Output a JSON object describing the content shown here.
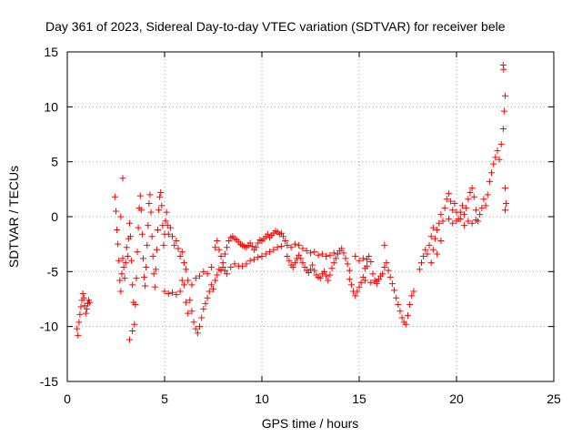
{
  "chart_data": {
    "type": "scatter",
    "title": "Day 361 of 2023, Sidereal Day-to-day VTEC variation (SDTVAR) for receiver bele",
    "xlabel": "GPS time / hours",
    "ylabel": "SDTVAR / TECUs",
    "xlim": [
      0,
      25
    ],
    "ylim": [
      -15,
      15
    ],
    "xticks": [
      0,
      5,
      10,
      15,
      20,
      25
    ],
    "yticks": [
      -15,
      -10,
      -5,
      0,
      5,
      10,
      15
    ],
    "xtick_labels": [
      "0",
      "5",
      "10",
      "15",
      "20",
      "25"
    ],
    "ytick_labels": [
      "-15",
      "-10",
      "-5",
      "0",
      "5",
      "10",
      "15"
    ],
    "grid": true,
    "marker": "+",
    "marker_color": "#ff0000",
    "series": [
      {
        "name": "SDTVAR",
        "points": [
          [
            0.5,
            -10.2
          ],
          [
            0.55,
            -10.8
          ],
          [
            0.6,
            -9.6
          ],
          [
            0.65,
            -8.9
          ],
          [
            0.7,
            -8.2
          ],
          [
            0.75,
            -7.6
          ],
          [
            0.8,
            -7.0
          ],
          [
            0.85,
            -7.4
          ],
          [
            0.9,
            -8.1
          ],
          [
            0.95,
            -8.8
          ],
          [
            1.0,
            -8.4
          ],
          [
            1.05,
            -7.9
          ],
          [
            1.1,
            -7.6
          ],
          [
            1.15,
            -7.8
          ],
          [
            2.45,
            1.8
          ],
          [
            2.5,
            0.5
          ],
          [
            2.55,
            -1.2
          ],
          [
            2.6,
            -2.5
          ],
          [
            2.65,
            -4.0
          ],
          [
            2.7,
            -5.8
          ],
          [
            2.75,
            -6.8
          ],
          [
            2.8,
            -5.2
          ],
          [
            2.85,
            -3.8
          ],
          [
            2.9,
            -4.6
          ],
          [
            2.95,
            -5.6
          ],
          [
            3.0,
            -4.2
          ],
          [
            3.05,
            -2.8
          ],
          [
            3.1,
            -3.6
          ],
          [
            3.15,
            -2.0
          ],
          [
            3.2,
            -0.6
          ],
          [
            3.25,
            -1.8
          ],
          [
            3.3,
            -4.0
          ],
          [
            3.35,
            -6.2
          ],
          [
            3.4,
            -7.8
          ],
          [
            3.45,
            -9.8
          ],
          [
            3.5,
            -8.0
          ],
          [
            3.55,
            -5.6
          ],
          [
            3.6,
            -3.2
          ],
          [
            3.65,
            -1.0
          ],
          [
            3.7,
            0.8
          ],
          [
            3.75,
            1.9
          ],
          [
            3.8,
            0.6
          ],
          [
            3.85,
            -1.6
          ],
          [
            3.9,
            -3.8
          ],
          [
            3.95,
            -5.5
          ],
          [
            4.0,
            -6.3
          ],
          [
            4.05,
            -4.6
          ],
          [
            4.1,
            -2.6
          ],
          [
            4.15,
            -0.8
          ],
          [
            4.2,
            1.2
          ],
          [
            4.25,
            2.0
          ],
          [
            4.3,
            0.4
          ],
          [
            4.35,
            -1.8
          ],
          [
            4.4,
            -3.6
          ],
          [
            4.45,
            -5.2
          ],
          [
            4.5,
            -6.4
          ],
          [
            4.55,
            -4.8
          ],
          [
            4.6,
            -3.0
          ],
          [
            4.65,
            -1.2
          ],
          [
            4.7,
            0.6
          ],
          [
            4.75,
            1.8
          ],
          [
            4.8,
            2.2
          ],
          [
            4.85,
            1.0
          ],
          [
            4.9,
            -0.8
          ],
          [
            4.95,
            -2.6
          ],
          [
            5.0,
            -1.6
          ],
          [
            5.05,
            -0.4
          ],
          [
            5.1,
            0.4
          ],
          [
            5.15,
            -0.8
          ],
          [
            5.2,
            -1.6
          ],
          [
            5.3,
            -1.0
          ],
          [
            5.4,
            -1.8
          ],
          [
            5.5,
            -2.6
          ],
          [
            5.6,
            -2.2
          ],
          [
            5.7,
            -2.9
          ],
          [
            5.8,
            -3.6
          ],
          [
            5.9,
            -3.2
          ],
          [
            6.0,
            -4.2
          ],
          [
            6.1,
            -4.8
          ],
          [
            3.2,
            -11.2
          ],
          [
            3.35,
            -10.4
          ],
          [
            2.85,
            3.5
          ],
          [
            2.75,
            0.0
          ],
          [
            5.0,
            -6.8
          ],
          [
            5.2,
            -7.0
          ],
          [
            5.4,
            -6.9
          ],
          [
            5.6,
            -7.1
          ],
          [
            5.8,
            -6.8
          ],
          [
            5.9,
            -5.8
          ],
          [
            6.0,
            -6.2
          ],
          [
            6.1,
            -7.8
          ],
          [
            6.2,
            -8.8
          ],
          [
            6.3,
            -7.6
          ],
          [
            6.4,
            -8.6
          ],
          [
            6.5,
            -9.6
          ],
          [
            6.6,
            -10.2
          ],
          [
            6.7,
            -10.6
          ],
          [
            6.8,
            -10.0
          ],
          [
            6.9,
            -9.2
          ],
          [
            7.0,
            -8.4
          ],
          [
            7.1,
            -7.9
          ],
          [
            7.2,
            -7.4
          ],
          [
            7.3,
            -6.8
          ],
          [
            7.4,
            -6.2
          ],
          [
            7.5,
            -6.6
          ],
          [
            7.6,
            -5.8
          ],
          [
            7.7,
            -5.3
          ],
          [
            7.8,
            -4.8
          ],
          [
            7.9,
            -4.9
          ],
          [
            8.0,
            -4.6
          ],
          [
            8.1,
            -4.9
          ],
          [
            8.2,
            -5.2
          ],
          [
            6.2,
            -5.8
          ],
          [
            6.4,
            -6.2
          ],
          [
            6.6,
            -5.6
          ],
          [
            6.8,
            -5.4
          ],
          [
            7.0,
            -5.0
          ],
          [
            7.2,
            -5.2
          ],
          [
            7.4,
            -4.6
          ],
          [
            7.6,
            -2.8
          ],
          [
            7.7,
            -2.2
          ],
          [
            7.8,
            -3.0
          ],
          [
            7.9,
            -3.6
          ],
          [
            8.0,
            -4.2
          ],
          [
            8.1,
            -3.4
          ],
          [
            8.2,
            -2.8
          ],
          [
            8.3,
            -2.2
          ],
          [
            8.4,
            -1.9
          ],
          [
            8.5,
            -1.8
          ],
          [
            8.6,
            -2.0
          ],
          [
            8.7,
            -2.1
          ],
          [
            8.8,
            -2.3
          ],
          [
            8.9,
            -2.5
          ],
          [
            9.0,
            -2.6
          ],
          [
            9.1,
            -2.7
          ],
          [
            9.2,
            -2.8
          ],
          [
            9.3,
            -2.6
          ],
          [
            9.4,
            -2.4
          ],
          [
            9.5,
            -2.7
          ],
          [
            9.6,
            -3.0
          ],
          [
            9.7,
            -2.8
          ],
          [
            9.8,
            -2.4
          ],
          [
            9.9,
            -2.1
          ],
          [
            10.0,
            -2.2
          ],
          [
            10.1,
            -2.0
          ],
          [
            10.2,
            -1.8
          ],
          [
            10.3,
            -1.6
          ],
          [
            10.4,
            -1.9
          ],
          [
            10.5,
            -1.7
          ],
          [
            10.6,
            -1.5
          ],
          [
            10.7,
            -1.3
          ],
          [
            10.8,
            -1.4
          ],
          [
            10.9,
            -1.6
          ],
          [
            11.0,
            -1.5
          ],
          [
            11.1,
            -1.8
          ],
          [
            11.2,
            -2.2
          ],
          [
            11.3,
            -2.6
          ],
          [
            8.4,
            -4.6
          ],
          [
            8.6,
            -4.3
          ],
          [
            8.8,
            -4.5
          ],
          [
            9.0,
            -4.5
          ],
          [
            9.2,
            -4.3
          ],
          [
            9.4,
            -4.0
          ],
          [
            9.6,
            -3.9
          ],
          [
            9.8,
            -3.7
          ],
          [
            10.0,
            -3.6
          ],
          [
            10.2,
            -3.4
          ],
          [
            10.4,
            -3.2
          ],
          [
            10.6,
            -3.0
          ],
          [
            10.8,
            -2.8
          ],
          [
            11.0,
            -2.7
          ],
          [
            11.3,
            -3.6
          ],
          [
            11.4,
            -4.0
          ],
          [
            11.5,
            -4.4
          ],
          [
            11.6,
            -4.6
          ],
          [
            11.7,
            -4.2
          ],
          [
            11.8,
            -3.8
          ],
          [
            11.9,
            -3.5
          ],
          [
            12.0,
            -3.8
          ],
          [
            12.1,
            -4.2
          ],
          [
            12.2,
            -4.6
          ],
          [
            12.3,
            -4.9
          ],
          [
            12.4,
            -5.1
          ],
          [
            12.5,
            -4.8
          ],
          [
            12.6,
            -4.4
          ],
          [
            12.7,
            -4.9
          ],
          [
            12.8,
            -5.3
          ],
          [
            12.9,
            -5.5
          ],
          [
            13.0,
            -5.6
          ],
          [
            13.1,
            -5.2
          ],
          [
            13.2,
            -5.0
          ],
          [
            13.3,
            -5.4
          ],
          [
            13.4,
            -5.8
          ],
          [
            13.5,
            -5.3
          ],
          [
            13.6,
            -4.7
          ],
          [
            13.7,
            -4.2
          ],
          [
            13.8,
            -3.8
          ],
          [
            13.9,
            -3.4
          ],
          [
            14.0,
            -3.1
          ],
          [
            14.1,
            -2.9
          ],
          [
            14.2,
            -3.3
          ],
          [
            14.3,
            -3.8
          ],
          [
            14.4,
            -4.3
          ],
          [
            14.5,
            -4.9
          ],
          [
            11.5,
            -2.8
          ],
          [
            11.7,
            -2.5
          ],
          [
            11.9,
            -2.6
          ],
          [
            12.1,
            -2.9
          ],
          [
            12.3,
            -3.1
          ],
          [
            12.5,
            -3.3
          ],
          [
            12.7,
            -3.2
          ],
          [
            12.9,
            -3.5
          ],
          [
            13.1,
            -3.4
          ],
          [
            13.3,
            -3.6
          ],
          [
            13.5,
            -3.5
          ],
          [
            13.7,
            -3.3
          ],
          [
            14.5,
            -5.7
          ],
          [
            14.6,
            -6.2
          ],
          [
            14.7,
            -6.8
          ],
          [
            14.8,
            -7.2
          ],
          [
            14.9,
            -6.8
          ],
          [
            15.0,
            -6.4
          ],
          [
            15.1,
            -6.0
          ],
          [
            15.2,
            -5.5
          ],
          [
            15.3,
            -4.7
          ],
          [
            15.4,
            -3.9
          ],
          [
            15.5,
            -3.6
          ],
          [
            15.6,
            -4.1
          ],
          [
            15.7,
            -5.2
          ],
          [
            15.8,
            -5.8
          ],
          [
            15.9,
            -5.9
          ],
          [
            16.0,
            -5.7
          ],
          [
            16.1,
            -5.4
          ],
          [
            16.2,
            -5.2
          ],
          [
            16.3,
            -4.6
          ],
          [
            16.4,
            -4.2
          ],
          [
            16.5,
            -4.9
          ],
          [
            16.6,
            -5.5
          ],
          [
            16.7,
            -6.1
          ],
          [
            16.8,
            -6.7
          ],
          [
            16.9,
            -7.4
          ],
          [
            17.0,
            -8.0
          ],
          [
            17.1,
            -8.6
          ],
          [
            17.2,
            -9.2
          ],
          [
            17.3,
            -9.6
          ],
          [
            17.4,
            -9.8
          ],
          [
            17.5,
            -9.0
          ],
          [
            17.6,
            -8.0
          ],
          [
            17.7,
            -7.2
          ],
          [
            17.8,
            -6.8
          ],
          [
            14.8,
            -3.6
          ],
          [
            15.0,
            -4.0
          ],
          [
            15.2,
            -3.8
          ],
          [
            15.4,
            -4.5
          ],
          [
            16.3,
            -2.6
          ],
          [
            15.3,
            -5.8
          ],
          [
            15.6,
            -6.0
          ],
          [
            15.9,
            -6.1
          ],
          [
            18.1,
            -4.8
          ],
          [
            18.2,
            -4.2
          ],
          [
            18.3,
            -3.6
          ],
          [
            18.4,
            -3.0
          ],
          [
            18.5,
            -3.4
          ],
          [
            18.6,
            -2.6
          ],
          [
            18.7,
            -1.8
          ],
          [
            18.8,
            -1.0
          ],
          [
            18.9,
            -2.0
          ],
          [
            19.0,
            -1.2
          ],
          [
            19.1,
            -0.6
          ],
          [
            19.2,
            0.2
          ],
          [
            19.3,
            -0.4
          ],
          [
            19.4,
            0.8
          ],
          [
            19.5,
            1.6
          ],
          [
            19.6,
            2.1
          ],
          [
            19.7,
            1.4
          ],
          [
            19.8,
            0.6
          ],
          [
            19.9,
            1.2
          ],
          [
            20.0,
            0.4
          ],
          [
            20.1,
            -0.2
          ],
          [
            20.2,
            0.4
          ],
          [
            20.3,
            1.0
          ],
          [
            20.4,
            0.2
          ],
          [
            20.5,
            0.8
          ],
          [
            20.6,
            1.6
          ],
          [
            20.7,
            2.2
          ],
          [
            20.8,
            2.6
          ],
          [
            20.9,
            1.8
          ],
          [
            21.0,
            0.6
          ],
          [
            21.1,
            -0.4
          ],
          [
            21.2,
            0.2
          ],
          [
            21.3,
            0.8
          ],
          [
            21.4,
            1.6
          ],
          [
            21.5,
            1.0
          ],
          [
            21.6,
            2.0
          ],
          [
            21.7,
            3.2
          ],
          [
            21.8,
            4.0
          ],
          [
            21.9,
            4.8
          ],
          [
            22.0,
            5.4
          ],
          [
            22.1,
            6.0
          ],
          [
            22.2,
            5.2
          ],
          [
            22.3,
            6.6
          ],
          [
            22.4,
            8.0
          ],
          [
            22.45,
            9.6
          ],
          [
            22.5,
            11.0
          ],
          [
            22.4,
            13.8
          ],
          [
            22.42,
            13.4
          ],
          [
            22.5,
            2.6
          ],
          [
            22.55,
            1.2
          ],
          [
            22.5,
            0.6
          ],
          [
            18.7,
            -4.2
          ],
          [
            18.8,
            -3.0
          ],
          [
            19.0,
            -3.4
          ],
          [
            19.2,
            -2.2
          ],
          [
            19.6,
            -0.2
          ],
          [
            19.8,
            -0.6
          ],
          [
            20.0,
            -0.4
          ],
          [
            20.2,
            -0.2
          ],
          [
            20.4,
            -0.8
          ],
          [
            20.6,
            -0.4
          ],
          [
            20.8,
            -0.6
          ],
          [
            21.0,
            -0.3
          ]
        ]
      }
    ]
  }
}
